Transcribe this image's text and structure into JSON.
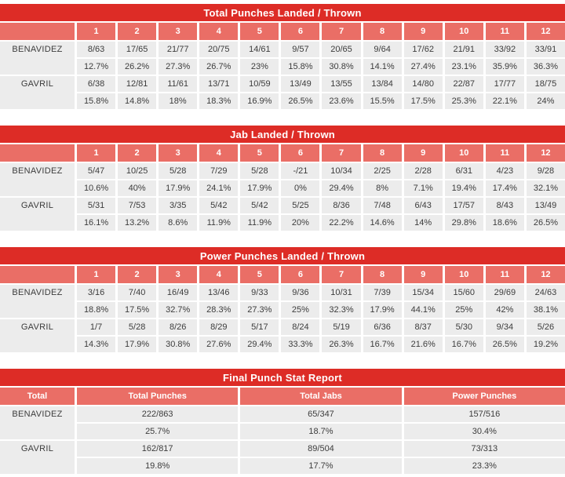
{
  "colors": {
    "title_bar": "#dd2c26",
    "header_row": "#ea6e66",
    "header_text": "#ffffff",
    "cell_bg": "#ececec",
    "cell_text": "#3c3c3c"
  },
  "chart_data": [
    {
      "type": "table",
      "id": "total-punches",
      "layout": "rounds",
      "title": "Total Punches Landed / Thrown",
      "columns": [
        "1",
        "2",
        "3",
        "4",
        "5",
        "6",
        "7",
        "8",
        "9",
        "10",
        "11",
        "12"
      ],
      "series": [
        {
          "name": "BENAVIDEZ",
          "landed_thrown": [
            "8/63",
            "17/65",
            "21/77",
            "20/75",
            "14/61",
            "9/57",
            "20/65",
            "9/64",
            "17/62",
            "21/91",
            "33/92",
            "33/91"
          ],
          "percent": [
            "12.7%",
            "26.2%",
            "27.3%",
            "26.7%",
            "23%",
            "15.8%",
            "30.8%",
            "14.1%",
            "27.4%",
            "23.1%",
            "35.9%",
            "36.3%"
          ]
        },
        {
          "name": "GAVRIL",
          "landed_thrown": [
            "6/38",
            "12/81",
            "11/61",
            "13/71",
            "10/59",
            "13/49",
            "13/55",
            "13/84",
            "14/80",
            "22/87",
            "17/77",
            "18/75"
          ],
          "percent": [
            "15.8%",
            "14.8%",
            "18%",
            "18.3%",
            "16.9%",
            "26.5%",
            "23.6%",
            "15.5%",
            "17.5%",
            "25.3%",
            "22.1%",
            "24%"
          ]
        }
      ]
    },
    {
      "type": "table",
      "id": "jabs",
      "layout": "rounds",
      "title": "Jab Landed / Thrown",
      "columns": [
        "1",
        "2",
        "3",
        "4",
        "5",
        "6",
        "7",
        "8",
        "9",
        "10",
        "11",
        "12"
      ],
      "series": [
        {
          "name": "BENAVIDEZ",
          "landed_thrown": [
            "5/47",
            "10/25",
            "5/28",
            "7/29",
            "5/28",
            "-/21",
            "10/34",
            "2/25",
            "2/28",
            "6/31",
            "4/23",
            "9/28"
          ],
          "percent": [
            "10.6%",
            "40%",
            "17.9%",
            "24.1%",
            "17.9%",
            "0%",
            "29.4%",
            "8%",
            "7.1%",
            "19.4%",
            "17.4%",
            "32.1%"
          ]
        },
        {
          "name": "GAVRIL",
          "landed_thrown": [
            "5/31",
            "7/53",
            "3/35",
            "5/42",
            "5/42",
            "5/25",
            "8/36",
            "7/48",
            "6/43",
            "17/57",
            "8/43",
            "13/49"
          ],
          "percent": [
            "16.1%",
            "13.2%",
            "8.6%",
            "11.9%",
            "11.9%",
            "20%",
            "22.2%",
            "14.6%",
            "14%",
            "29.8%",
            "18.6%",
            "26.5%"
          ]
        }
      ]
    },
    {
      "type": "table",
      "id": "power-punches",
      "layout": "rounds",
      "title": "Power Punches Landed / Thrown",
      "columns": [
        "1",
        "2",
        "3",
        "4",
        "5",
        "6",
        "7",
        "8",
        "9",
        "10",
        "11",
        "12"
      ],
      "series": [
        {
          "name": "BENAVIDEZ",
          "landed_thrown": [
            "3/16",
            "7/40",
            "16/49",
            "13/46",
            "9/33",
            "9/36",
            "10/31",
            "7/39",
            "15/34",
            "15/60",
            "29/69",
            "24/63"
          ],
          "percent": [
            "18.8%",
            "17.5%",
            "32.7%",
            "28.3%",
            "27.3%",
            "25%",
            "32.3%",
            "17.9%",
            "44.1%",
            "25%",
            "42%",
            "38.1%"
          ]
        },
        {
          "name": "GAVRIL",
          "landed_thrown": [
            "1/7",
            "5/28",
            "8/26",
            "8/29",
            "5/17",
            "8/24",
            "5/19",
            "6/36",
            "8/37",
            "5/30",
            "9/34",
            "5/26"
          ],
          "percent": [
            "14.3%",
            "17.9%",
            "30.8%",
            "27.6%",
            "29.4%",
            "33.3%",
            "26.3%",
            "16.7%",
            "21.6%",
            "16.7%",
            "26.5%",
            "19.2%"
          ]
        }
      ]
    },
    {
      "type": "table",
      "id": "final-report",
      "layout": "summary",
      "title": "Final Punch Stat Report",
      "columns": [
        "Total",
        "Total Punches",
        "Total Jabs",
        "Power Punches"
      ],
      "series": [
        {
          "name": "BENAVIDEZ",
          "landed_thrown": [
            "222/863",
            "65/347",
            "157/516"
          ],
          "percent": [
            "25.7%",
            "18.7%",
            "30.4%"
          ]
        },
        {
          "name": "GAVRIL",
          "landed_thrown": [
            "162/817",
            "89/504",
            "73/313"
          ],
          "percent": [
            "19.8%",
            "17.7%",
            "23.3%"
          ]
        }
      ]
    }
  ]
}
